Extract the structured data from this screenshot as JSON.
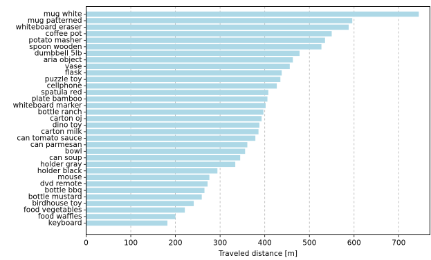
{
  "chart_data": {
    "type": "bar",
    "orientation": "horizontal",
    "xlabel": "Traveled distance [m]",
    "ylabel": "",
    "title": "",
    "xlim": [
      0,
      770
    ],
    "xticks": [
      0,
      100,
      200,
      300,
      400,
      500,
      600,
      700
    ],
    "grid": "vertical dashed",
    "bar_color": "#add8e6",
    "categories": [
      "mug white",
      "mug patterned",
      "whiteboard eraser",
      "coffee pot",
      "potato masher",
      "spoon wooden",
      "dumbbell 5lb",
      "aria object",
      "vase",
      "flask",
      "puzzle toy",
      "cellphone",
      "spatula red",
      "plate bamboo",
      "whiteboard marker",
      "bottle ranch",
      "carton oj",
      "dino toy",
      "carton milk",
      "can tomato sauce",
      "can parmesan",
      "bowl",
      "can soup",
      "holder gray",
      "holder black",
      "mouse",
      "dvd remote",
      "bottle bbq",
      "bottle mustard",
      "birdhouse toy",
      "food vegetables",
      "food waffles",
      "keyboard"
    ],
    "values": [
      745,
      596,
      588,
      550,
      535,
      527,
      478,
      463,
      456,
      438,
      435,
      427,
      408,
      406,
      402,
      397,
      393,
      388,
      386,
      379,
      361,
      356,
      345,
      334,
      294,
      276,
      272,
      265,
      259,
      241,
      221,
      200,
      182
    ]
  }
}
